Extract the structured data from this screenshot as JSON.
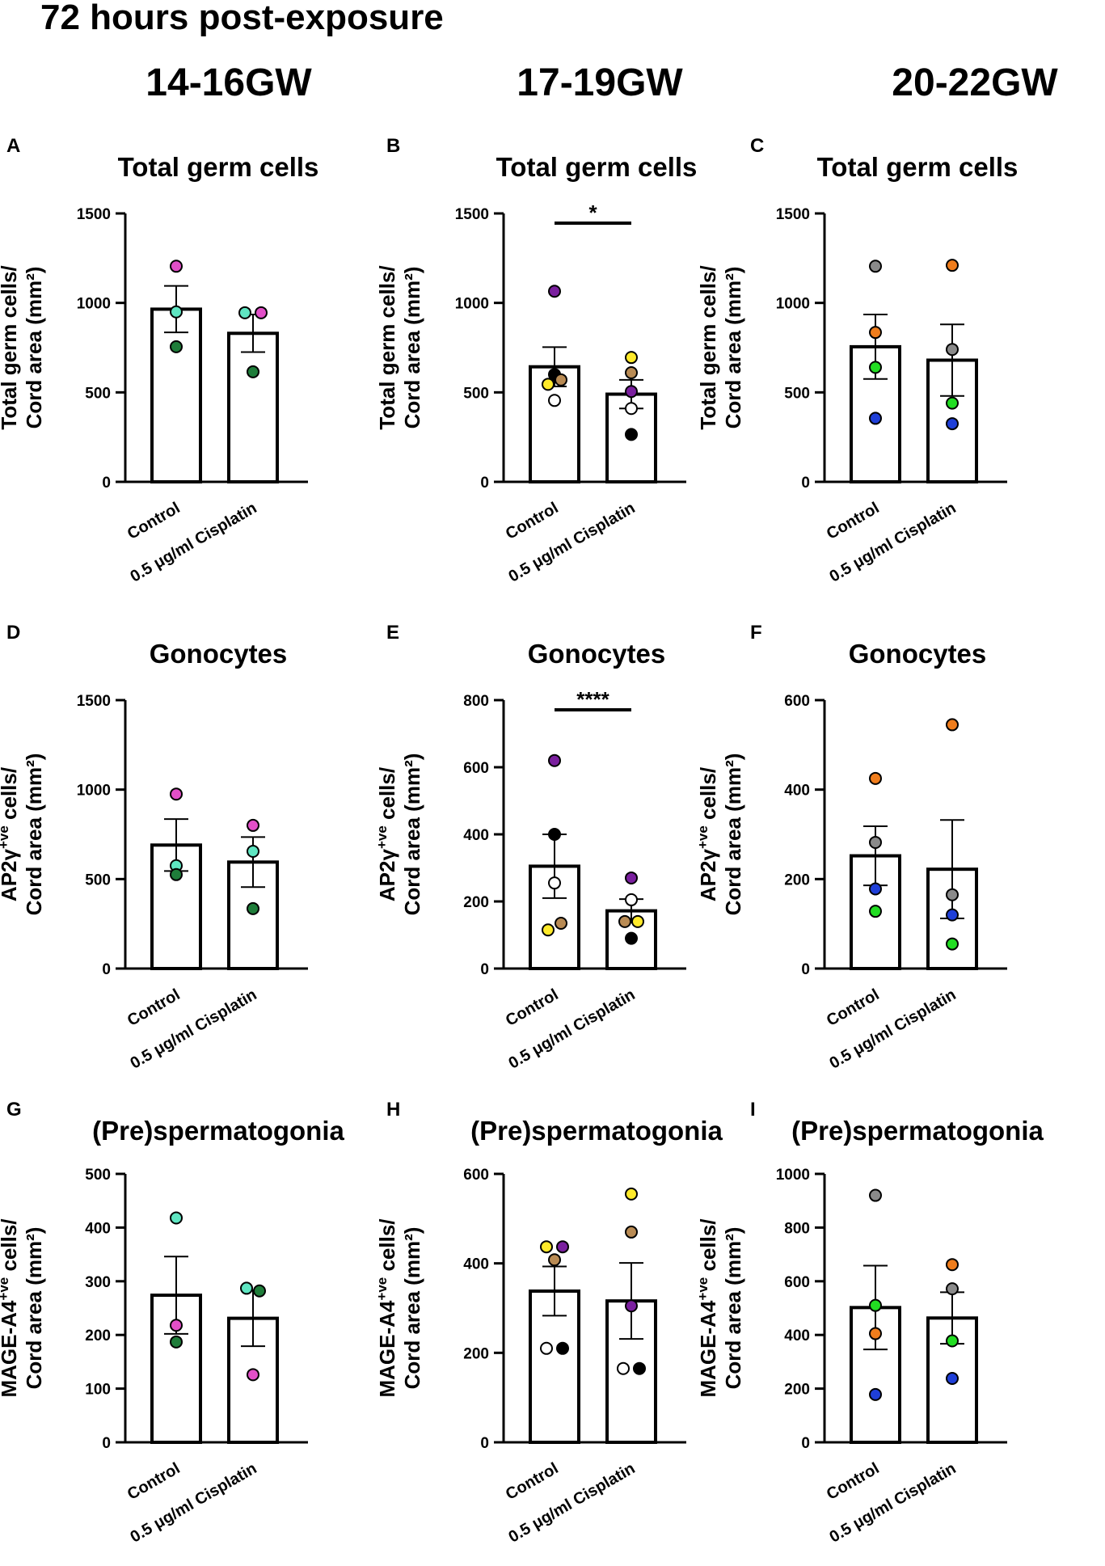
{
  "figure": {
    "title": "72 hours post-exposure",
    "columns": [
      "14-16GW",
      "17-19GW",
      "20-22GW"
    ]
  },
  "colors": {
    "pink": "#e24fc8",
    "aqua": "#5fe6c2",
    "darkgreen": "#1f7d3a",
    "green": "#22dd22",
    "yellow": "#ffea2a",
    "brown": "#b98b54",
    "purple": "#7a1f9e",
    "black": "#000000",
    "white": "#ffffff",
    "grey": "#8a8a8a",
    "orange": "#f07d1c",
    "blue": "#1f3fd8"
  },
  "chart_data": [
    {
      "id": "A",
      "type": "bar",
      "title": "Total germ cells",
      "ylabel": [
        "Total germ cells/",
        "Cord area (mm²)"
      ],
      "ylim": [
        0,
        1500
      ],
      "yticks": [
        0,
        500,
        1000,
        1500
      ],
      "categories": [
        "Control",
        "0.5 μg/ml Cisplatin"
      ],
      "values": [
        965,
        830
      ],
      "sem": [
        130,
        105
      ],
      "points": [
        [
          {
            "y": 1205,
            "c": "pink"
          },
          {
            "y": 950,
            "c": "aqua"
          },
          {
            "y": 755,
            "c": "darkgreen"
          }
        ],
        [
          {
            "y": 945,
            "c": "aqua",
            "dx": -0.5
          },
          {
            "y": 945,
            "c": "pink",
            "dx": 0.5
          },
          {
            "y": 615,
            "c": "darkgreen"
          }
        ]
      ],
      "significance": null
    },
    {
      "id": "B",
      "type": "bar",
      "title": "Total germ cells",
      "ylabel": [
        "Total germ cells/",
        "Cord area (mm²)"
      ],
      "ylim": [
        0,
        1500
      ],
      "yticks": [
        0,
        500,
        1000,
        1500
      ],
      "categories": [
        "Control",
        "0.5 μg/ml Cisplatin"
      ],
      "values": [
        643,
        490
      ],
      "sem": [
        110,
        80
      ],
      "points": [
        [
          {
            "y": 1065,
            "c": "purple"
          },
          {
            "y": 600,
            "c": "black"
          },
          {
            "y": 570,
            "c": "brown",
            "dx": 0.4
          },
          {
            "y": 545,
            "c": "yellow",
            "dx": -0.4
          },
          {
            "y": 455,
            "c": "white"
          }
        ],
        [
          {
            "y": 695,
            "c": "yellow"
          },
          {
            "y": 610,
            "c": "brown"
          },
          {
            "y": 505,
            "c": "purple"
          },
          {
            "y": 410,
            "c": "white"
          },
          {
            "y": 265,
            "c": "black"
          }
        ]
      ],
      "significance": "*"
    },
    {
      "id": "C",
      "type": "bar",
      "title": "Total germ cells",
      "ylabel": [
        "Total germ cells/",
        "Cord area (mm²)"
      ],
      "ylim": [
        0,
        1500
      ],
      "yticks": [
        0,
        500,
        1000,
        1500
      ],
      "categories": [
        "Control",
        "0.5 μg/ml Cisplatin"
      ],
      "values": [
        755,
        680
      ],
      "sem": [
        180,
        200
      ],
      "points": [
        [
          {
            "y": 1205,
            "c": "grey"
          },
          {
            "y": 835,
            "c": "orange"
          },
          {
            "y": 640,
            "c": "green"
          },
          {
            "y": 355,
            "c": "blue"
          }
        ],
        [
          {
            "y": 1210,
            "c": "orange"
          },
          {
            "y": 740,
            "c": "grey"
          },
          {
            "y": 440,
            "c": "green"
          },
          {
            "y": 325,
            "c": "blue"
          }
        ]
      ],
      "significance": null
    },
    {
      "id": "D",
      "type": "bar",
      "title": "Gonocytes",
      "ylabel": [
        "AP2γ +ve cells/",
        "Cord area (mm²)"
      ],
      "ylim": [
        0,
        1500
      ],
      "yticks": [
        0,
        500,
        1000,
        1500
      ],
      "categories": [
        "Control",
        "0.5 μg/ml Cisplatin"
      ],
      "values": [
        690,
        595
      ],
      "sem": [
        145,
        140
      ],
      "points": [
        [
          {
            "y": 975,
            "c": "pink"
          },
          {
            "y": 575,
            "c": "aqua"
          },
          {
            "y": 525,
            "c": "darkgreen"
          }
        ],
        [
          {
            "y": 800,
            "c": "pink"
          },
          {
            "y": 655,
            "c": "aqua"
          },
          {
            "y": 335,
            "c": "darkgreen"
          }
        ]
      ],
      "significance": null
    },
    {
      "id": "E",
      "type": "bar",
      "title": "Gonocytes",
      "ylabel": [
        "AP2γ +ve cells/",
        "Cord area (mm²)"
      ],
      "ylim": [
        0,
        800
      ],
      "yticks": [
        0,
        200,
        400,
        600,
        800
      ],
      "categories": [
        "Control",
        "0.5 μg/ml Cisplatin"
      ],
      "values": [
        305,
        172
      ],
      "sem": [
        95,
        35
      ],
      "points": [
        [
          {
            "y": 620,
            "c": "purple"
          },
          {
            "y": 400,
            "c": "black"
          },
          {
            "y": 255,
            "c": "white"
          },
          {
            "y": 135,
            "c": "brown",
            "dx": 0.4
          },
          {
            "y": 115,
            "c": "yellow",
            "dx": -0.4
          }
        ],
        [
          {
            "y": 270,
            "c": "purple"
          },
          {
            "y": 205,
            "c": "white"
          },
          {
            "y": 140,
            "c": "brown",
            "dx": -0.4
          },
          {
            "y": 140,
            "c": "yellow",
            "dx": 0.4
          },
          {
            "y": 90,
            "c": "black"
          }
        ]
      ],
      "significance": "****"
    },
    {
      "id": "F",
      "type": "bar",
      "title": "Gonocytes",
      "ylabel": [
        "AP2γ +ve cells/",
        "Cord area (mm²)"
      ],
      "ylim": [
        0,
        600
      ],
      "yticks": [
        0,
        200,
        400,
        600
      ],
      "categories": [
        "Control",
        "0.5 μg/ml Cisplatin"
      ],
      "values": [
        252,
        222
      ],
      "sem": [
        66,
        110
      ],
      "points": [
        [
          {
            "y": 425,
            "c": "orange"
          },
          {
            "y": 282,
            "c": "grey"
          },
          {
            "y": 178,
            "c": "blue"
          },
          {
            "y": 128,
            "c": "green"
          }
        ],
        [
          {
            "y": 545,
            "c": "orange"
          },
          {
            "y": 165,
            "c": "grey"
          },
          {
            "y": 120,
            "c": "blue"
          },
          {
            "y": 55,
            "c": "green"
          }
        ]
      ],
      "significance": null
    },
    {
      "id": "G",
      "type": "bar",
      "title": "(Pre)spermatogonia",
      "ylabel": [
        "MAGE-A4+ve cells/",
        "Cord area (mm²)"
      ],
      "ylim": [
        0,
        500
      ],
      "yticks": [
        0,
        100,
        200,
        300,
        400,
        500
      ],
      "categories": [
        "Control",
        "0.5 μg/ml Cisplatin"
      ],
      "values": [
        274,
        231
      ],
      "sem": [
        72,
        52
      ],
      "points": [
        [
          {
            "y": 418,
            "c": "aqua"
          },
          {
            "y": 218,
            "c": "pink"
          },
          {
            "y": 187,
            "c": "darkgreen"
          }
        ],
        [
          {
            "y": 287,
            "c": "aqua",
            "dx": -0.4
          },
          {
            "y": 282,
            "c": "darkgreen",
            "dx": 0.4
          },
          {
            "y": 126,
            "c": "pink"
          }
        ]
      ],
      "significance": null
    },
    {
      "id": "H",
      "type": "bar",
      "title": "(Pre)spermatogonia",
      "ylabel": [
        "MAGE-A4+ve cells/",
        "Cord area (mm²)"
      ],
      "ylim": [
        0,
        600
      ],
      "yticks": [
        0,
        200,
        400,
        600
      ],
      "categories": [
        "Control",
        "0.5 μg/ml Cisplatin"
      ],
      "values": [
        338,
        316
      ],
      "sem": [
        55,
        85
      ],
      "points": [
        [
          {
            "y": 437,
            "c": "yellow",
            "dx": -0.5
          },
          {
            "y": 437,
            "c": "purple",
            "dx": 0.5
          },
          {
            "y": 408,
            "c": "brown"
          },
          {
            "y": 210,
            "c": "white",
            "dx": -0.5
          },
          {
            "y": 210,
            "c": "black",
            "dx": 0.5
          }
        ],
        [
          {
            "y": 555,
            "c": "yellow"
          },
          {
            "y": 470,
            "c": "brown"
          },
          {
            "y": 305,
            "c": "purple"
          },
          {
            "y": 165,
            "c": "white",
            "dx": -0.5
          },
          {
            "y": 165,
            "c": "black",
            "dx": 0.5
          }
        ]
      ],
      "significance": null
    },
    {
      "id": "I",
      "type": "bar",
      "title": "(Pre)spermatogonia",
      "ylabel": [
        "MAGE-A4+ve cells/",
        "Cord area (mm²)"
      ],
      "ylim": [
        0,
        1000
      ],
      "yticks": [
        0,
        200,
        400,
        600,
        800,
        1000
      ],
      "categories": [
        "Control",
        "0.5 μg/ml Cisplatin"
      ],
      "values": [
        502,
        463
      ],
      "sem": [
        156,
        96
      ],
      "points": [
        [
          {
            "y": 920,
            "c": "grey"
          },
          {
            "y": 510,
            "c": "green"
          },
          {
            "y": 405,
            "c": "orange"
          },
          {
            "y": 178,
            "c": "blue"
          }
        ],
        [
          {
            "y": 662,
            "c": "orange"
          },
          {
            "y": 572,
            "c": "grey"
          },
          {
            "y": 378,
            "c": "green"
          },
          {
            "y": 238,
            "c": "blue"
          }
        ]
      ],
      "significance": null
    }
  ]
}
